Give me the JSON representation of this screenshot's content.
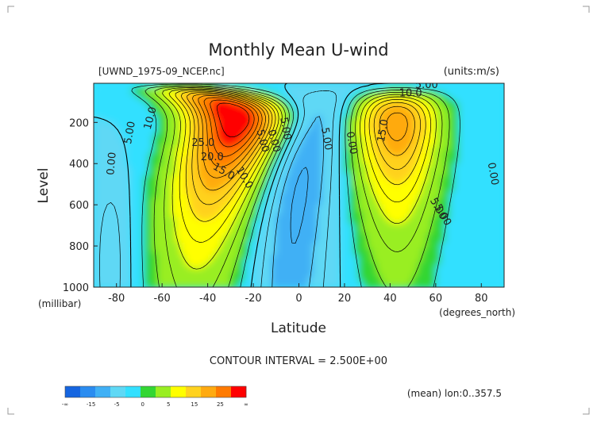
{
  "chart_data": {
    "type": "heatmap",
    "title": "Monthly Mean U-wind",
    "file_label": "[UWND_1975-09_NCEP.nc]",
    "units_label": "(units:m/s)",
    "xlabel": "Latitude",
    "x_units": "(degrees_north)",
    "ylabel": "Level",
    "y_units": "(millibar)",
    "xlim": [
      -90,
      90
    ],
    "ylim": [
      1000,
      10
    ],
    "x_ticks": [
      -80,
      -60,
      -40,
      -20,
      0,
      20,
      40,
      60,
      80
    ],
    "x_tick_labels": [
      "-80",
      "-60",
      "-40",
      "-20",
      "0",
      "20",
      "40",
      "60",
      "80"
    ],
    "y_ticks": [
      200,
      400,
      600,
      800,
      1000
    ],
    "y_tick_labels": [
      "200",
      "400",
      "600",
      "800",
      "1000"
    ],
    "contour_interval": "CONTOUR INTERVAL = 2.500E+00",
    "average_note": "(mean) lon:0..357.5",
    "colorbar": {
      "colors": [
        "#1565e0",
        "#2a8cf0",
        "#40b0f5",
        "#5fd8f5",
        "#33e0ff",
        "#33d633",
        "#99ee22",
        "#ffff00",
        "#ffd21f",
        "#ffaa10",
        "#ff7a00",
        "#ff0000"
      ],
      "tick_labels": [
        "-∞",
        "-15",
        "-5",
        "0",
        "5",
        "15",
        "25",
        "∞"
      ]
    },
    "contour_labels": [
      {
        "text": "10.0",
        "x": -65,
        "y": 180,
        "angle": 75
      },
      {
        "text": "5.00",
        "x": -74,
        "y": 250,
        "angle": 80
      },
      {
        "text": "0.00",
        "x": -82,
        "y": 400,
        "angle": 85
      },
      {
        "text": "25.0",
        "x": -42,
        "y": 300,
        "angle": 0
      },
      {
        "text": "20.0",
        "x": -38,
        "y": 370,
        "angle": 0
      },
      {
        "text": "15.0",
        "x": -33,
        "y": 440,
        "angle": -30
      },
      {
        "text": "10.0",
        "x": -24,
        "y": 470,
        "angle": -60
      },
      {
        "text": "5.00",
        "x": -16,
        "y": 290,
        "angle": -75
      },
      {
        "text": "0.00",
        "x": -11,
        "y": 290,
        "angle": -75
      },
      {
        "text": "5.00",
        "x": -6,
        "y": 230,
        "angle": -80
      },
      {
        "text": "5.00",
        "x": 12,
        "y": 280,
        "angle": -80
      },
      {
        "text": "0.00",
        "x": 23,
        "y": 300,
        "angle": -80
      },
      {
        "text": "5.00",
        "x": 56,
        "y": 20,
        "angle": 0
      },
      {
        "text": "10.0",
        "x": 49,
        "y": 60,
        "angle": 0
      },
      {
        "text": "15.0",
        "x": 37,
        "y": 240,
        "angle": 80
      },
      {
        "text": "0.00",
        "x": 85,
        "y": 450,
        "angle": -80
      },
      {
        "text": "5.00",
        "x": 63,
        "y": 650,
        "angle": -60
      },
      {
        "text": "5.00",
        "x": 61,
        "y": 620,
        "angle": -60
      }
    ]
  }
}
